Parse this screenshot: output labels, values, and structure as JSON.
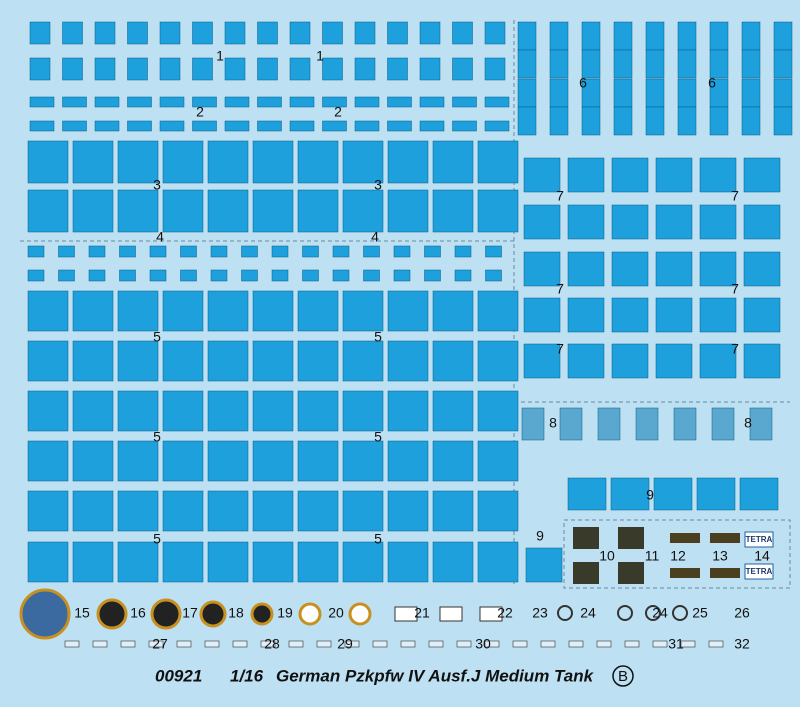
{
  "labels": [
    "1",
    "1",
    "2",
    "2",
    "3",
    "3",
    "4",
    "4",
    "5",
    "5",
    "5",
    "5",
    "5",
    "5",
    "6",
    "6",
    "7",
    "7",
    "7",
    "7",
    "7",
    "7",
    "8",
    "8",
    "9",
    "9",
    "10",
    "11",
    "12",
    "13",
    "14",
    "15",
    "16",
    "17",
    "18",
    "19",
    "20",
    "21",
    "22",
    "23",
    "24",
    "24",
    "25",
    "26",
    "27",
    "28",
    "29",
    "30",
    "31",
    "32"
  ],
  "tetra": [
    "TETRA",
    "TETRA"
  ],
  "footer": {
    "code": "00921",
    "scale": "1/16",
    "title": "German Pzkpfw IV Ausf.J Medium Tank",
    "sheet": "B"
  }
}
